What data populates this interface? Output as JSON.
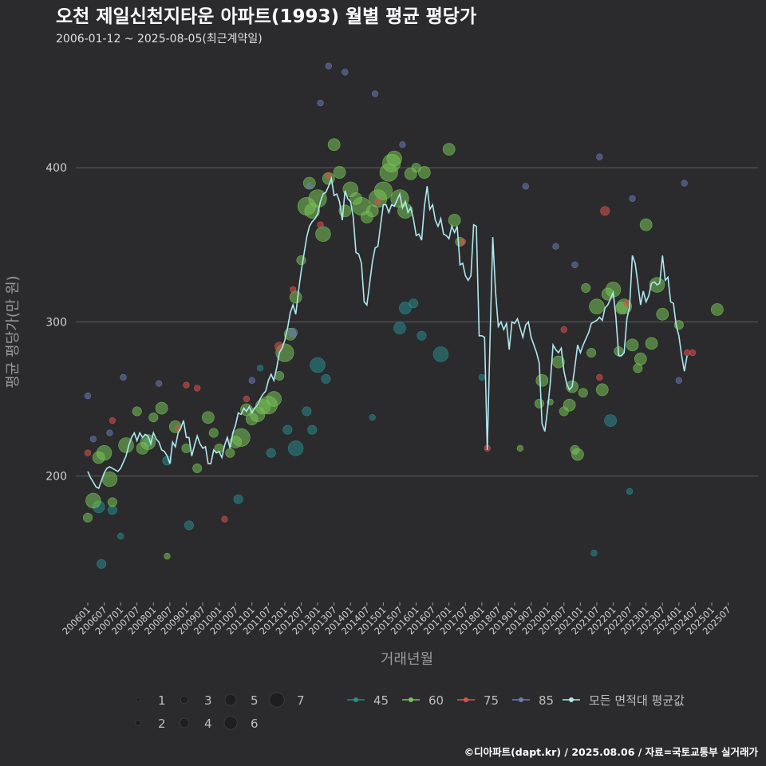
{
  "chart_data": {
    "type": "scatter",
    "title": "오천 제일신천지타운 아파트(1993) 월별 평균 평당가",
    "subtitle": "2006-01-12 ~ 2025-08-05(최근계약일)",
    "xlabel": "거래년월",
    "ylabel": "평균 평당가(만 원)",
    "ylim": [
      118,
      470
    ],
    "yticks": [
      200,
      300,
      400
    ],
    "x_start": "200601",
    "x_end": "202508",
    "xticks": [
      "200601",
      "200607",
      "200701",
      "200707",
      "200801",
      "200807",
      "200901",
      "200907",
      "201001",
      "201007",
      "201101",
      "201107",
      "201201",
      "201207",
      "201301",
      "201307",
      "201401",
      "201407",
      "201501",
      "201507",
      "201601",
      "201607",
      "201701",
      "201707",
      "201801",
      "201807",
      "201901",
      "201907",
      "202001",
      "202007",
      "202101",
      "202107",
      "202201",
      "202207",
      "202301",
      "202307",
      "202401",
      "202407",
      "202501",
      "202507"
    ],
    "grid": true,
    "size_legend": {
      "values": [
        1,
        2,
        3,
        4,
        5,
        6,
        7
      ]
    },
    "series": [
      {
        "name": "45",
        "color": "#2a8a8e",
        "points": [
          [
            "200605",
            180,
            3
          ],
          [
            "200606",
            143,
            2
          ],
          [
            "200610",
            178,
            2
          ],
          [
            "200701",
            161,
            1
          ],
          [
            "200711",
            222,
            2
          ],
          [
            "200806",
            210,
            2
          ],
          [
            "200902",
            168,
            2
          ],
          [
            "201008",
            185,
            2
          ],
          [
            "201104",
            270,
            1
          ],
          [
            "201108",
            215,
            2
          ],
          [
            "201202",
            230,
            2
          ],
          [
            "201205",
            218,
            4
          ],
          [
            "201209",
            242,
            2
          ],
          [
            "201211",
            230,
            2
          ],
          [
            "201301",
            272,
            4
          ],
          [
            "201304",
            263,
            2
          ],
          [
            "201409",
            238,
            1
          ],
          [
            "201507",
            296,
            3
          ],
          [
            "201509",
            309,
            3
          ],
          [
            "201512",
            312,
            2
          ],
          [
            "201603",
            291,
            2
          ],
          [
            "201610",
            279,
            4
          ],
          [
            "201801",
            264,
            1
          ],
          [
            "202106",
            150,
            1
          ],
          [
            "202112",
            236,
            3
          ],
          [
            "202207",
            190,
            1
          ]
        ]
      },
      {
        "name": "60",
        "color": "#78c258",
        "points": [
          [
            "200601",
            173,
            2
          ],
          [
            "200603",
            184,
            4
          ],
          [
            "200605",
            212,
            3
          ],
          [
            "200607",
            215,
            4
          ],
          [
            "200609",
            198,
            4
          ],
          [
            "200610",
            183,
            2
          ],
          [
            "200703",
            220,
            4
          ],
          [
            "200707",
            242,
            2
          ],
          [
            "200709",
            218,
            3
          ],
          [
            "200711",
            222,
            4
          ],
          [
            "200801",
            238,
            2
          ],
          [
            "200804",
            244,
            3
          ],
          [
            "200806",
            148,
            1
          ],
          [
            "200809",
            232,
            3
          ],
          [
            "200901",
            218,
            2
          ],
          [
            "200905",
            205,
            2
          ],
          [
            "200909",
            238,
            3
          ],
          [
            "200911",
            228,
            2
          ],
          [
            "201001",
            218,
            2
          ],
          [
            "201005",
            215,
            2
          ],
          [
            "201007",
            222,
            3
          ],
          [
            "201009",
            225,
            5
          ],
          [
            "201011",
            243,
            3
          ],
          [
            "201101",
            237,
            3
          ],
          [
            "201103",
            240,
            4
          ],
          [
            "201105",
            245,
            4
          ],
          [
            "201107",
            246,
            5
          ],
          [
            "201109",
            250,
            4
          ],
          [
            "201111",
            265,
            2
          ],
          [
            "201201",
            280,
            5
          ],
          [
            "201203",
            292,
            3
          ],
          [
            "201205",
            316,
            3
          ],
          [
            "201207",
            340,
            2
          ],
          [
            "201209",
            375,
            5
          ],
          [
            "201210",
            390,
            3
          ],
          [
            "201211",
            372,
            4
          ],
          [
            "201301",
            380,
            5
          ],
          [
            "201303",
            357,
            4
          ],
          [
            "201305",
            393,
            3
          ],
          [
            "201307",
            415,
            3
          ],
          [
            "201309",
            397,
            3
          ],
          [
            "201311",
            372,
            3
          ],
          [
            "201401",
            386,
            4
          ],
          [
            "201403",
            380,
            3
          ],
          [
            "201405",
            375,
            5
          ],
          [
            "201407",
            368,
            3
          ],
          [
            "201409",
            372,
            3
          ],
          [
            "201411",
            380,
            5
          ],
          [
            "201501",
            385,
            5
          ],
          [
            "201503",
            397,
            5
          ],
          [
            "201504",
            403,
            5
          ],
          [
            "201505",
            406,
            4
          ],
          [
            "201507",
            380,
            5
          ],
          [
            "201509",
            372,
            4
          ],
          [
            "201511",
            396,
            3
          ],
          [
            "201601",
            400,
            2
          ],
          [
            "201604",
            397,
            3
          ],
          [
            "201701",
            412,
            3
          ],
          [
            "201703",
            366,
            3
          ],
          [
            "201705",
            352,
            2
          ],
          [
            "201903",
            218,
            1
          ],
          [
            "201910",
            247,
            2
          ],
          [
            "201911",
            262,
            3
          ],
          [
            "202002",
            248,
            1
          ],
          [
            "202005",
            274,
            3
          ],
          [
            "202007",
            242,
            2
          ],
          [
            "202009",
            246,
            3
          ],
          [
            "202010",
            258,
            3
          ],
          [
            "202011",
            217,
            2
          ],
          [
            "202012",
            214,
            3
          ],
          [
            "202102",
            254,
            2
          ],
          [
            "202103",
            322,
            2
          ],
          [
            "202105",
            280,
            2
          ],
          [
            "202107",
            310,
            4
          ],
          [
            "202109",
            256,
            3
          ],
          [
            "202111",
            318,
            3
          ],
          [
            "202201",
            321,
            4
          ],
          [
            "202203",
            281,
            2
          ],
          [
            "202204",
            309,
            3
          ],
          [
            "202205",
            310,
            4
          ],
          [
            "202208",
            285,
            3
          ],
          [
            "202210",
            270,
            2
          ],
          [
            "202211",
            276,
            3
          ],
          [
            "202301",
            363,
            3
          ],
          [
            "202303",
            286,
            3
          ],
          [
            "202305",
            324,
            4
          ],
          [
            "202307",
            305,
            3
          ],
          [
            "202401",
            298,
            2
          ],
          [
            "202503",
            308,
            3
          ]
        ]
      },
      {
        "name": "75",
        "color": "#d9534f",
        "points": [
          [
            "200601",
            215,
            1
          ],
          [
            "200610",
            236,
            1
          ],
          [
            "200810",
            231,
            1
          ],
          [
            "200901",
            259,
            1
          ],
          [
            "200905",
            257,
            1
          ],
          [
            "201003",
            172,
            1
          ],
          [
            "201011",
            250,
            1
          ],
          [
            "201111",
            284,
            2
          ],
          [
            "201204",
            321,
            1
          ],
          [
            "201302",
            363,
            1
          ],
          [
            "201305",
            395,
            1
          ],
          [
            "201411",
            378,
            1
          ],
          [
            "201706",
            352,
            1
          ],
          [
            "201803",
            218,
            1
          ],
          [
            "202007",
            295,
            1
          ],
          [
            "202108",
            264,
            1
          ],
          [
            "202110",
            372,
            2
          ],
          [
            "202206",
            312,
            1
          ],
          [
            "202404",
            280,
            1
          ],
          [
            "202406",
            280,
            1
          ]
        ]
      },
      {
        "name": "85",
        "color": "#6c7ab6",
        "points": [
          [
            "200601",
            252,
            1
          ],
          [
            "200603",
            224,
            1
          ],
          [
            "200609",
            228,
            1
          ],
          [
            "200702",
            264,
            1
          ],
          [
            "200803",
            260,
            1
          ],
          [
            "201101",
            262,
            1
          ],
          [
            "201204",
            293,
            2
          ],
          [
            "201210",
            388,
            1
          ],
          [
            "201302",
            442,
            1
          ],
          [
            "201305",
            466,
            1
          ],
          [
            "201311",
            462,
            1
          ],
          [
            "201410",
            448,
            1
          ],
          [
            "201508",
            415,
            1
          ],
          [
            "201905",
            388,
            1
          ],
          [
            "202004",
            349,
            1
          ],
          [
            "202011",
            337,
            1
          ],
          [
            "202108",
            407,
            1
          ],
          [
            "202208",
            380,
            1
          ],
          [
            "202401",
            262,
            1
          ],
          [
            "202403",
            390,
            1
          ]
        ]
      }
    ],
    "average": {
      "name": "모든 면적대 평균값",
      "color": "#aee8ee",
      "values": [
        203,
        199,
        196,
        193,
        192,
        197,
        202,
        205,
        206,
        205,
        204,
        203,
        205,
        209,
        213,
        220,
        225,
        228,
        223,
        228,
        225,
        227,
        226,
        221,
        228,
        224,
        222,
        217,
        216,
        213,
        208,
        222,
        219,
        228,
        231,
        236,
        225,
        225,
        213,
        220,
        226,
        221,
        218,
        219,
        208,
        208,
        217,
        215,
        216,
        212,
        220,
        225,
        218,
        228,
        233,
        241,
        240,
        244,
        242,
        245,
        241,
        244,
        246,
        250,
        253,
        255,
        262,
        266,
        262,
        270,
        280,
        283,
        288,
        296,
        306,
        311,
        305,
        320,
        333,
        344,
        355,
        362,
        365,
        367,
        370,
        378,
        383,
        384,
        388,
        393,
        382,
        383,
        378,
        366,
        385,
        380,
        378,
        368,
        345,
        344,
        338,
        313,
        311,
        325,
        339,
        348,
        349,
        363,
        376,
        376,
        371,
        376,
        375,
        379,
        383,
        374,
        378,
        371,
        374,
        367,
        356,
        357,
        353,
        375,
        388,
        373,
        376,
        366,
        362,
        367,
        357,
        356,
        354,
        362,
        358,
        362,
        337,
        338,
        330,
        327,
        330,
        363,
        362,
        291,
        291,
        290,
        217,
        290,
        355,
        320,
        297,
        300,
        295,
        299,
        282,
        300,
        299,
        302,
        296,
        290,
        298,
        300,
        290,
        285,
        280,
        273,
        234,
        229,
        243,
        260,
        285,
        282,
        280,
        283,
        268,
        260,
        256,
        258,
        271,
        285,
        280,
        285,
        289,
        293,
        299,
        300,
        301,
        303,
        301,
        309,
        311,
        315,
        319,
        303,
        278,
        278,
        280,
        302,
        310,
        343,
        338,
        325,
        311,
        320,
        313,
        317,
        325,
        326,
        324,
        325,
        343,
        327,
        329,
        313,
        312,
        298,
        291,
        278,
        268,
        278
      ]
    }
  },
  "legend": {
    "size_values": [
      "1",
      "2",
      "3",
      "4",
      "5",
      "6",
      "7"
    ],
    "series_labels": [
      "45",
      "60",
      "75",
      "85",
      "모든 면적대 평균값"
    ]
  },
  "credit": "©디아파트(dapt.kr) / 2025.08.06 / 자료=국토교통부 실거래가",
  "colors": {
    "background": "#2b2b2d",
    "grid": "#5e5e5e"
  }
}
